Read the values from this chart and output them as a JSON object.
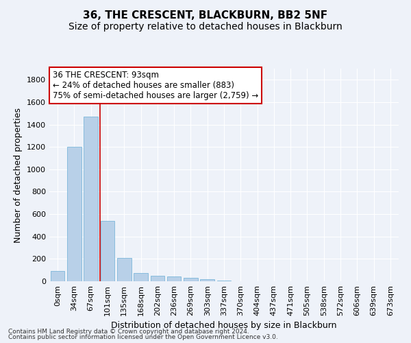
{
  "title1": "36, THE CRESCENT, BLACKBURN, BB2 5NF",
  "title2": "Size of property relative to detached houses in Blackburn",
  "xlabel": "Distribution of detached houses by size in Blackburn",
  "ylabel": "Number of detached properties",
  "bar_labels": [
    "0sqm",
    "34sqm",
    "67sqm",
    "101sqm",
    "135sqm",
    "168sqm",
    "202sqm",
    "236sqm",
    "269sqm",
    "303sqm",
    "337sqm",
    "370sqm",
    "404sqm",
    "437sqm",
    "471sqm",
    "505sqm",
    "538sqm",
    "572sqm",
    "606sqm",
    "639sqm",
    "673sqm"
  ],
  "bar_values": [
    95,
    1200,
    1470,
    540,
    207,
    75,
    50,
    40,
    28,
    18,
    5,
    0,
    0,
    0,
    0,
    0,
    0,
    0,
    0,
    0,
    0
  ],
  "bar_color": "#b8d0e8",
  "bar_edgecolor": "#6aaed6",
  "vline_x": 2.55,
  "vline_color": "#cc0000",
  "annotation_text": "36 THE CRESCENT: 93sqm\n← 24% of detached houses are smaller (883)\n75% of semi-detached houses are larger (2,759) →",
  "annotation_box_color": "white",
  "annotation_box_edgecolor": "#cc0000",
  "ylim": [
    0,
    1900
  ],
  "yticks": [
    0,
    200,
    400,
    600,
    800,
    1000,
    1200,
    1400,
    1600,
    1800
  ],
  "footer_line1": "Contains HM Land Registry data © Crown copyright and database right 2024.",
  "footer_line2": "Contains public sector information licensed under the Open Government Licence v3.0.",
  "bg_color": "#eef2f9",
  "grid_color": "white",
  "title_fontsize": 11,
  "subtitle_fontsize": 10,
  "axis_label_fontsize": 9,
  "tick_fontsize": 8,
  "annotation_fontsize": 8.5,
  "footer_fontsize": 6.5
}
